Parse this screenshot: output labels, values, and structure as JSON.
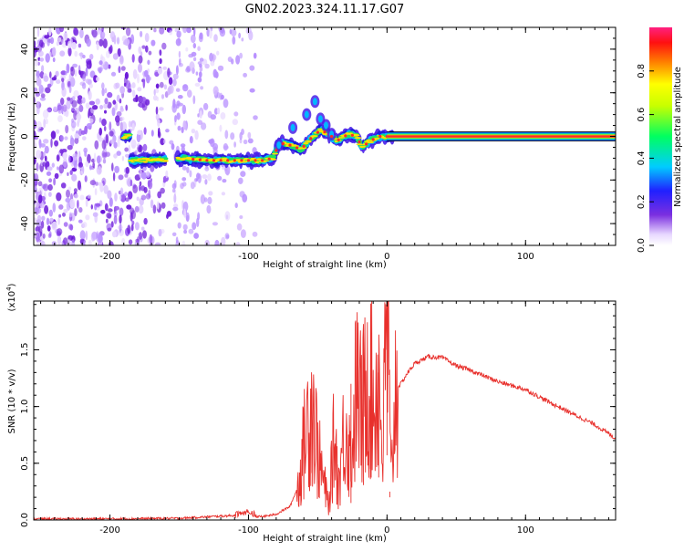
{
  "title": "GN02.2023.324.11.17.G07",
  "colors": {
    "snr_line": "#e8302c",
    "spectrogram_speckle": "#7b2fe0",
    "trace_core": "#ff2a2a",
    "trace_edge": "#1a1ad0"
  },
  "chart_data": [
    {
      "type": "heatmap",
      "title": "GN02.2023.324.11.17.G07",
      "xlabel": "Height of straight line (km)",
      "ylabel": "Frequency (Hz)",
      "xlim": [
        -255,
        165
      ],
      "ylim": [
        -50,
        50
      ],
      "xticks": [
        -200,
        -100,
        0,
        100
      ],
      "yticks": [
        -40,
        -20,
        0,
        20,
        40
      ],
      "colorbar": {
        "label": "Normalized spectral amplitude",
        "range": [
          0,
          1
        ],
        "ticks": [
          "0.0",
          "0.2",
          "0.4",
          "0.6",
          "0.8"
        ],
        "colormap": "rainbow (white-purple-blue-cyan-green-yellow-red-pink)"
      },
      "noise_region_x": [
        -255,
        -95
      ],
      "trace": [
        {
          "x": -185,
          "f": -11
        },
        {
          "x": -170,
          "f": -11
        },
        {
          "x": -150,
          "f": -10
        },
        {
          "x": -130,
          "f": -11
        },
        {
          "x": -110,
          "f": -11
        },
        {
          "x": -90,
          "f": -11
        },
        {
          "x": -82,
          "f": -10
        },
        {
          "x": -78,
          "f": -3
        },
        {
          "x": -70,
          "f": -4
        },
        {
          "x": -62,
          "f": -6
        },
        {
          "x": -55,
          "f": -1
        },
        {
          "x": -48,
          "f": 3
        },
        {
          "x": -42,
          "f": 1
        },
        {
          "x": -36,
          "f": -2
        },
        {
          "x": -28,
          "f": 1
        },
        {
          "x": -22,
          "f": 0
        },
        {
          "x": -18,
          "f": -5
        },
        {
          "x": -12,
          "f": -2
        },
        {
          "x": -5,
          "f": 0
        },
        {
          "x": 0,
          "f": 0
        },
        {
          "x": 165,
          "f": 0
        }
      ],
      "grid": false
    },
    {
      "type": "line",
      "xlabel": "Height of straight line (km)",
      "ylabel": "SNR (10 * v/v)",
      "y_multiplier": "(x10^4)",
      "xlim": [
        -255,
        165
      ],
      "ylim": [
        0,
        1.93
      ],
      "xticks": [
        -200,
        -100,
        0,
        100
      ],
      "yticks": [
        "0.0",
        "0.5",
        "1.0",
        "1.5"
      ],
      "series": [
        {
          "x": [
            -255,
            -200,
            -150,
            -110,
            -100,
            -95,
            -90,
            -80,
            -70,
            -64,
            -60,
            -57,
            -54,
            -50,
            -46,
            -42,
            -38,
            -35,
            -30,
            -26,
            -22,
            -18,
            -14,
            -10,
            -6,
            -3,
            0,
            3,
            6,
            10,
            15,
            20,
            30,
            40,
            50,
            60,
            80,
            100,
            120,
            140,
            150,
            165
          ],
          "y": [
            0.01,
            0.01,
            0.015,
            0.04,
            0.06,
            0.03,
            0.03,
            0.05,
            0.12,
            0.3,
            0.65,
            0.9,
            1.05,
            0.6,
            0.35,
            0.12,
            0.75,
            0.3,
            0.9,
            0.5,
            1.2,
            0.9,
            1.4,
            1.0,
            1.25,
            0.6,
            1.9,
            0.3,
            1.15,
            1.2,
            1.3,
            1.38,
            1.44,
            1.43,
            1.36,
            1.32,
            1.22,
            1.15,
            1.02,
            0.9,
            0.84,
            0.72
          ]
        }
      ],
      "grid": false
    }
  ]
}
